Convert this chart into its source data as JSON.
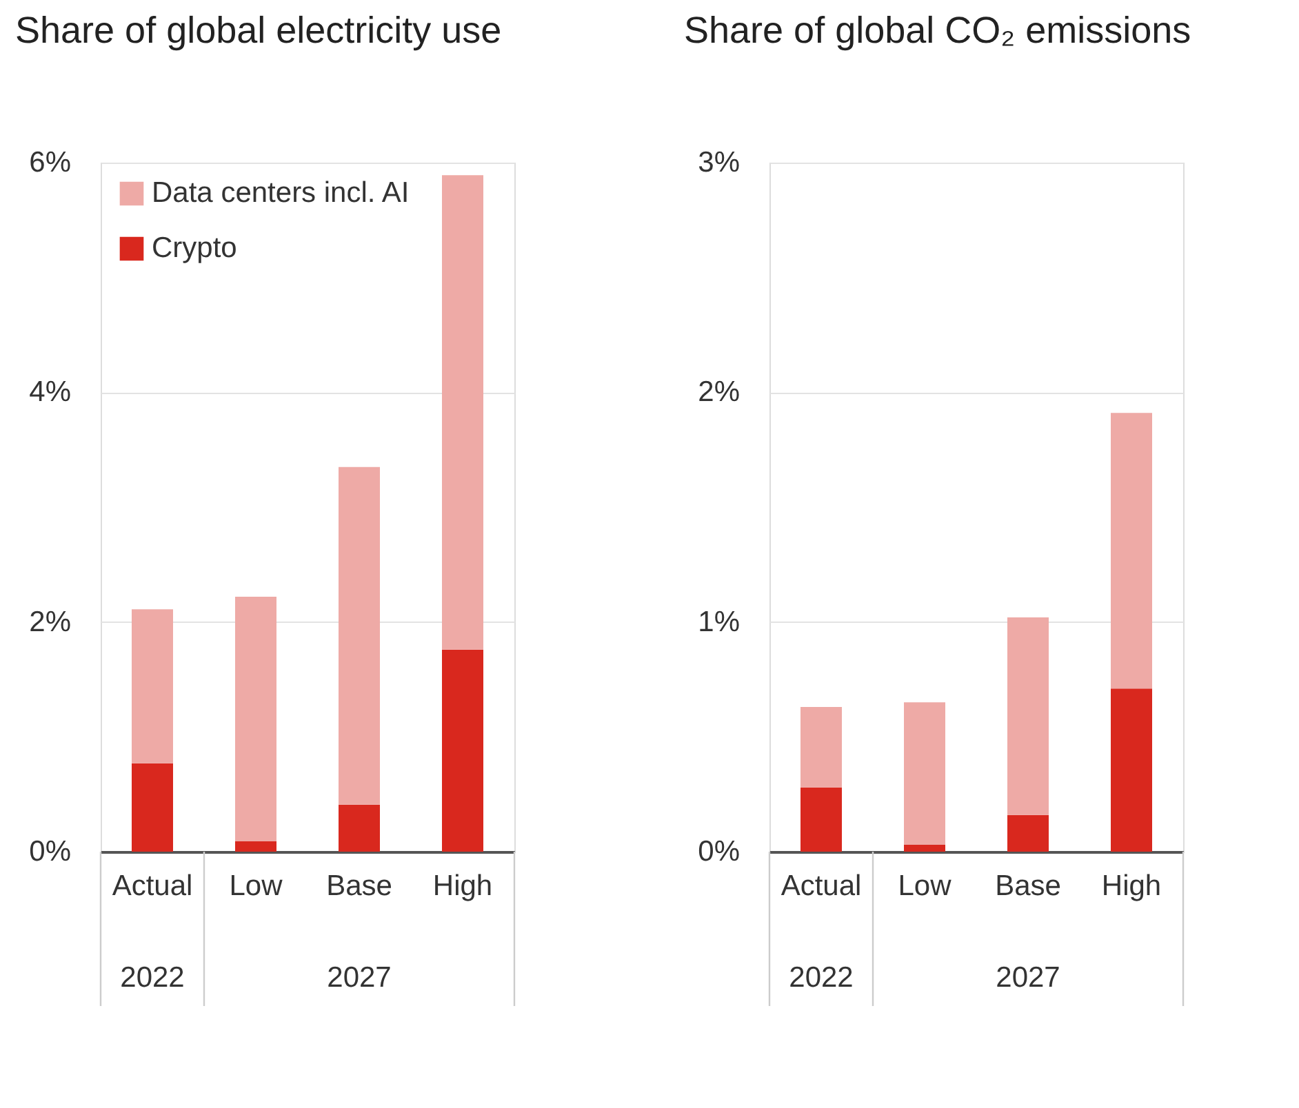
{
  "chart_data": [
    {
      "type": "bar",
      "title": "Share of global electricity use",
      "stacked": true,
      "grid": "y",
      "legend": "top left",
      "categories": [
        "Actual",
        "Low",
        "Base",
        "High"
      ],
      "series": [
        {
          "name": "Crypto",
          "color": "#d9281e",
          "values": [
            0.77,
            0.09,
            0.41,
            1.76
          ]
        },
        {
          "name": "Data centers incl. AI",
          "color": "#eeaaa6",
          "values": [
            1.34,
            2.13,
            2.94,
            4.13
          ]
        }
      ],
      "ylim": [
        0,
        6
      ],
      "yticks": [
        {
          "value": 0,
          "label": "0%"
        },
        {
          "value": 2,
          "label": "2%"
        },
        {
          "value": 4,
          "label": "4%"
        },
        {
          "value": 6,
          "label": "6%"
        }
      ],
      "annotations": [
        "2022",
        "2027"
      ]
    },
    {
      "type": "bar",
      "title": "Share of global CO₂ emissions",
      "stacked": true,
      "grid": "y",
      "categories": [
        "Actual",
        "Low",
        "Base",
        "High"
      ],
      "series": [
        {
          "color": "#d9281e",
          "values": [
            0.28,
            0.03,
            0.16,
            0.71
          ]
        },
        {
          "color": "#eeaaa6",
          "values": [
            0.35,
            0.62,
            0.86,
            1.2
          ]
        }
      ],
      "ylim": [
        0,
        3
      ],
      "yticks": [
        {
          "value": 0,
          "label": "0%"
        },
        {
          "value": 1,
          "label": "1%"
        },
        {
          "value": 2,
          "label": "2%"
        },
        {
          "value": 3,
          "label": "3%"
        }
      ],
      "annotations": [
        "2022",
        "2027"
      ]
    }
  ]
}
